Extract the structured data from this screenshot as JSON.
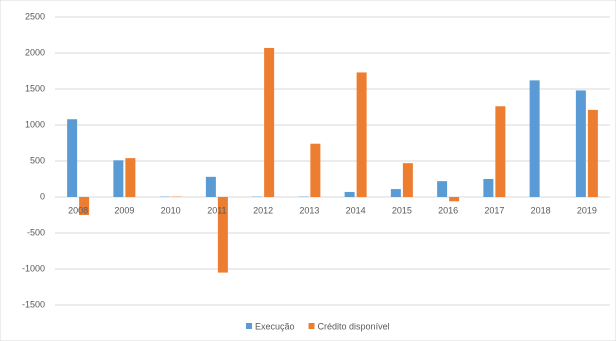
{
  "chart_data": {
    "type": "bar",
    "categories": [
      "2008",
      "2009",
      "2010",
      "2011",
      "2012",
      "2013",
      "2014",
      "2015",
      "2016",
      "2017",
      "2018",
      "2019"
    ],
    "series": [
      {
        "name": "Execução",
        "color": "#5b9bd5",
        "values": [
          1080,
          510,
          5,
          280,
          5,
          5,
          70,
          110,
          220,
          250,
          1620,
          1480
        ]
      },
      {
        "name": "Crédito disponível",
        "color": "#ed7d31",
        "values": [
          -250,
          540,
          5,
          -1050,
          2070,
          740,
          1730,
          470,
          -60,
          1260,
          0,
          1210
        ]
      }
    ],
    "ylim": [
      -1500,
      2500
    ],
    "yticks": [
      -1500,
      -1000,
      -500,
      0,
      500,
      1000,
      1500,
      2000,
      2500
    ],
    "grid": true
  }
}
